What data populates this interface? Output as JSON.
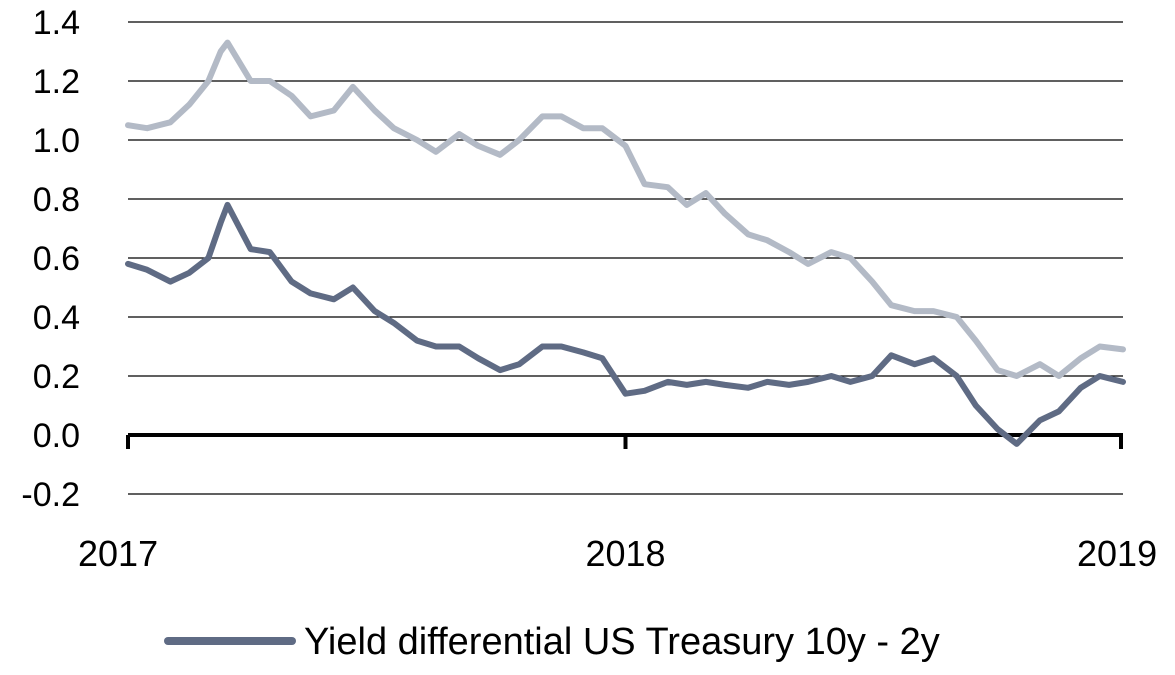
{
  "chart_data": {
    "type": "line",
    "title": "",
    "xlabel": "",
    "ylabel": "",
    "ylim": [
      -0.2,
      1.4
    ],
    "xlim": [
      "2017-01-01",
      "2019-01-01"
    ],
    "yticks": [
      -0.2,
      0.0,
      0.2,
      0.4,
      0.6,
      0.8,
      1.0,
      1.2,
      1.4
    ],
    "ytick_labels": [
      "-0.2",
      "0.0",
      "0.2",
      "0.4",
      "0.6",
      "0.8",
      "1.0",
      "1.2",
      "1.4"
    ],
    "xticks": [
      "2017",
      "2018",
      "2019"
    ],
    "grid": "horizontal",
    "legend_position": "bottom",
    "series": [
      {
        "name": "",
        "color": "#b3bac6",
        "x": [
          "2017-01-01",
          "2017-01-15",
          "2017-02-01",
          "2017-02-15",
          "2017-03-01",
          "2017-03-10",
          "2017-03-15",
          "2017-04-01",
          "2017-04-15",
          "2017-05-01",
          "2017-05-15",
          "2017-06-01",
          "2017-06-15",
          "2017-07-01",
          "2017-07-15",
          "2017-08-01",
          "2017-08-15",
          "2017-09-01",
          "2017-09-15",
          "2017-10-01",
          "2017-10-15",
          "2017-11-01",
          "2017-11-15",
          "2017-12-01",
          "2017-12-15",
          "2018-01-01",
          "2018-01-15",
          "2018-02-01",
          "2018-02-15",
          "2018-03-01",
          "2018-03-15",
          "2018-04-01",
          "2018-04-15",
          "2018-05-01",
          "2018-05-15",
          "2018-06-01",
          "2018-06-15",
          "2018-07-01",
          "2018-07-15",
          "2018-08-01",
          "2018-08-15",
          "2018-09-01",
          "2018-09-15",
          "2018-10-01",
          "2018-10-15",
          "2018-11-01",
          "2018-11-15",
          "2018-12-01",
          "2018-12-15",
          "2019-01-01"
        ],
        "values": [
          1.05,
          1.04,
          1.06,
          1.12,
          1.2,
          1.3,
          1.33,
          1.2,
          1.2,
          1.15,
          1.08,
          1.1,
          1.18,
          1.1,
          1.04,
          1.0,
          0.96,
          1.02,
          0.98,
          0.95,
          1.0,
          1.08,
          1.08,
          1.04,
          1.04,
          0.98,
          0.85,
          0.84,
          0.78,
          0.82,
          0.75,
          0.68,
          0.66,
          0.62,
          0.58,
          0.62,
          0.6,
          0.52,
          0.44,
          0.42,
          0.42,
          0.4,
          0.32,
          0.22,
          0.2,
          0.24,
          0.2,
          0.26,
          0.3,
          0.29
        ]
      },
      {
        "name": "Yield differential US Treasury 10y - 2y",
        "color": "#5f6b84",
        "x": [
          "2017-01-01",
          "2017-01-15",
          "2017-02-01",
          "2017-02-15",
          "2017-03-01",
          "2017-03-10",
          "2017-03-15",
          "2017-04-01",
          "2017-04-15",
          "2017-05-01",
          "2017-05-15",
          "2017-06-01",
          "2017-06-15",
          "2017-07-01",
          "2017-07-15",
          "2017-08-01",
          "2017-08-15",
          "2017-09-01",
          "2017-09-15",
          "2017-10-01",
          "2017-10-15",
          "2017-11-01",
          "2017-11-15",
          "2017-12-01",
          "2017-12-15",
          "2018-01-01",
          "2018-01-15",
          "2018-02-01",
          "2018-02-15",
          "2018-03-01",
          "2018-03-15",
          "2018-04-01",
          "2018-04-15",
          "2018-05-01",
          "2018-05-15",
          "2018-06-01",
          "2018-06-15",
          "2018-07-01",
          "2018-07-15",
          "2018-08-01",
          "2018-08-15",
          "2018-09-01",
          "2018-09-15",
          "2018-10-01",
          "2018-10-15",
          "2018-11-01",
          "2018-11-15",
          "2018-12-01",
          "2018-12-15",
          "2019-01-01"
        ],
        "values": [
          0.58,
          0.56,
          0.52,
          0.55,
          0.6,
          0.72,
          0.78,
          0.63,
          0.62,
          0.52,
          0.48,
          0.46,
          0.5,
          0.42,
          0.38,
          0.32,
          0.3,
          0.3,
          0.26,
          0.22,
          0.24,
          0.3,
          0.3,
          0.28,
          0.26,
          0.14,
          0.15,
          0.18,
          0.17,
          0.18,
          0.17,
          0.16,
          0.18,
          0.17,
          0.18,
          0.2,
          0.18,
          0.2,
          0.27,
          0.24,
          0.26,
          0.2,
          0.1,
          0.02,
          -0.03,
          0.05,
          0.08,
          0.16,
          0.2,
          0.18
        ]
      }
    ]
  }
}
